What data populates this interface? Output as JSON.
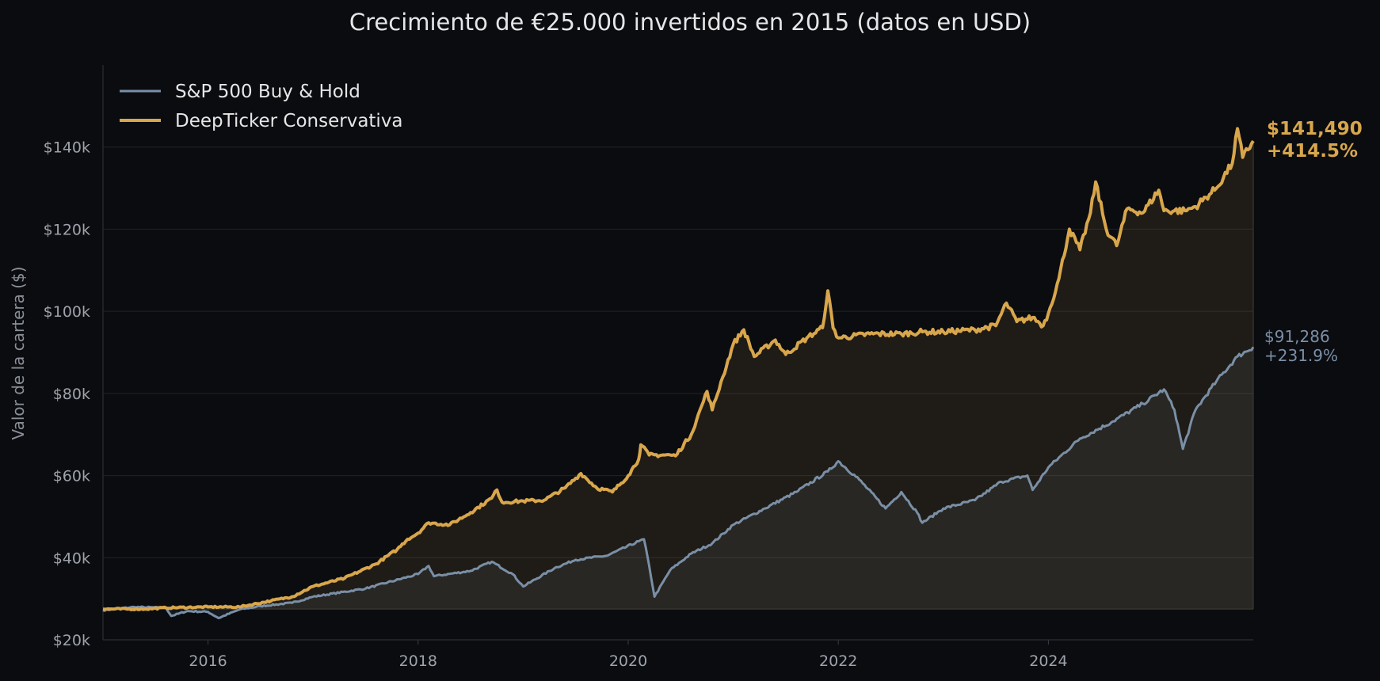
{
  "chart_data": {
    "type": "line",
    "title": "Crecimiento de €25.000 invertidos en 2015 (datos en USD)",
    "xlabel": "",
    "ylabel": "Valor de la cartera ($)",
    "xlim": [
      2015.0,
      2025.95
    ],
    "ylim": [
      20000,
      160000
    ],
    "y_ticks": [
      20000,
      40000,
      60000,
      80000,
      100000,
      120000,
      140000
    ],
    "y_tick_labels": [
      "$20k",
      "$40k",
      "$60k",
      "$80k",
      "$100k",
      "$120k",
      "$140k"
    ],
    "x_ticks": [
      2016,
      2018,
      2020,
      2022,
      2024
    ],
    "x_tick_labels": [
      "2016",
      "2018",
      "2020",
      "2022",
      "2024"
    ],
    "grid": "horizontal",
    "legend_position": "top-left",
    "baseline": 27500,
    "series": [
      {
        "name": "S&P 500 Buy & Hold",
        "color": "#7a8fa6",
        "points": [
          [
            2015.0,
            27200
          ],
          [
            2015.3,
            28000
          ],
          [
            2015.6,
            27800
          ],
          [
            2015.65,
            25800
          ],
          [
            2015.8,
            27000
          ],
          [
            2016.0,
            26800
          ],
          [
            2016.1,
            25300
          ],
          [
            2016.3,
            27400
          ],
          [
            2016.5,
            28200
          ],
          [
            2016.8,
            29000
          ],
          [
            2017.0,
            30500
          ],
          [
            2017.5,
            32500
          ],
          [
            2018.0,
            36000
          ],
          [
            2018.1,
            38000
          ],
          [
            2018.15,
            35500
          ],
          [
            2018.5,
            36800
          ],
          [
            2018.7,
            39000
          ],
          [
            2018.9,
            36000
          ],
          [
            2019.0,
            33000
          ],
          [
            2019.3,
            37500
          ],
          [
            2019.5,
            39500
          ],
          [
            2019.8,
            40500
          ],
          [
            2020.1,
            44000
          ],
          [
            2020.15,
            44500
          ],
          [
            2020.2,
            38000
          ],
          [
            2020.25,
            30500
          ],
          [
            2020.4,
            37000
          ],
          [
            2020.6,
            41000
          ],
          [
            2020.8,
            43500
          ],
          [
            2021.0,
            48000
          ],
          [
            2021.3,
            52000
          ],
          [
            2021.6,
            56000
          ],
          [
            2021.9,
            61000
          ],
          [
            2022.0,
            63500
          ],
          [
            2022.2,
            59000
          ],
          [
            2022.45,
            52000
          ],
          [
            2022.6,
            56000
          ],
          [
            2022.75,
            51000
          ],
          [
            2022.8,
            48500
          ],
          [
            2023.0,
            52000
          ],
          [
            2023.3,
            54000
          ],
          [
            2023.55,
            58500
          ],
          [
            2023.8,
            60000
          ],
          [
            2023.85,
            56500
          ],
          [
            2024.0,
            62000
          ],
          [
            2024.3,
            69000
          ],
          [
            2024.6,
            73000
          ],
          [
            2024.9,
            77500
          ],
          [
            2025.1,
            81000
          ],
          [
            2025.2,
            76000
          ],
          [
            2025.28,
            66500
          ],
          [
            2025.4,
            76000
          ],
          [
            2025.6,
            83000
          ],
          [
            2025.8,
            89000
          ],
          [
            2025.95,
            91286
          ]
        ]
      },
      {
        "name": "DeepTicker Conservativa",
        "color": "#d8a64c",
        "points": [
          [
            2015.0,
            27500
          ],
          [
            2015.4,
            27500
          ],
          [
            2015.6,
            27800
          ],
          [
            2016.0,
            28000
          ],
          [
            2016.3,
            28000
          ],
          [
            2016.6,
            29500
          ],
          [
            2016.8,
            30500
          ],
          [
            2017.0,
            33000
          ],
          [
            2017.3,
            35000
          ],
          [
            2017.6,
            38500
          ],
          [
            2017.8,
            42000
          ],
          [
            2017.9,
            44500
          ],
          [
            2018.0,
            46000
          ],
          [
            2018.1,
            48500
          ],
          [
            2018.3,
            48000
          ],
          [
            2018.5,
            51000
          ],
          [
            2018.7,
            54500
          ],
          [
            2018.75,
            56500
          ],
          [
            2018.8,
            53500
          ],
          [
            2019.0,
            53800
          ],
          [
            2019.2,
            54000
          ],
          [
            2019.4,
            57000
          ],
          [
            2019.55,
            60500
          ],
          [
            2019.7,
            57000
          ],
          [
            2019.85,
            56000
          ],
          [
            2020.0,
            60000
          ],
          [
            2020.1,
            64000
          ],
          [
            2020.12,
            67500
          ],
          [
            2020.2,
            65000
          ],
          [
            2020.4,
            65000
          ],
          [
            2020.45,
            64800
          ],
          [
            2020.6,
            70000
          ],
          [
            2020.7,
            77000
          ],
          [
            2020.75,
            80500
          ],
          [
            2020.8,
            76000
          ],
          [
            2020.9,
            84000
          ],
          [
            2021.0,
            92000
          ],
          [
            2021.1,
            95500
          ],
          [
            2021.2,
            89000
          ],
          [
            2021.4,
            93000
          ],
          [
            2021.5,
            89500
          ],
          [
            2021.7,
            93500
          ],
          [
            2021.85,
            96000
          ],
          [
            2021.9,
            105000
          ],
          [
            2021.95,
            96000
          ],
          [
            2022.0,
            93500
          ],
          [
            2022.3,
            94500
          ],
          [
            2022.6,
            94500
          ],
          [
            2022.8,
            95000
          ],
          [
            2023.0,
            95000
          ],
          [
            2023.3,
            95500
          ],
          [
            2023.5,
            96500
          ],
          [
            2023.6,
            102000
          ],
          [
            2023.7,
            97500
          ],
          [
            2023.85,
            98500
          ],
          [
            2023.95,
            96500
          ],
          [
            2024.0,
            99500
          ],
          [
            2024.1,
            108000
          ],
          [
            2024.2,
            120000
          ],
          [
            2024.3,
            115000
          ],
          [
            2024.4,
            124000
          ],
          [
            2024.45,
            131500
          ],
          [
            2024.55,
            120000
          ],
          [
            2024.65,
            116000
          ],
          [
            2024.75,
            125000
          ],
          [
            2024.9,
            124000
          ],
          [
            2025.05,
            129500
          ],
          [
            2025.1,
            124500
          ],
          [
            2025.3,
            124500
          ],
          [
            2025.4,
            125500
          ],
          [
            2025.6,
            130000
          ],
          [
            2025.75,
            136000
          ],
          [
            2025.8,
            144500
          ],
          [
            2025.85,
            137500
          ],
          [
            2025.95,
            141490
          ]
        ]
      }
    ],
    "annotations": [
      {
        "series": "DeepTicker Conservativa",
        "value_text": "$141,490",
        "pct_text": "+414.5%",
        "color": "#d8a64c"
      },
      {
        "series": "S&P 500 Buy & Hold",
        "value_text": "$91,286",
        "pct_text": "+231.9%",
        "color": "#7a8fa6"
      }
    ]
  }
}
